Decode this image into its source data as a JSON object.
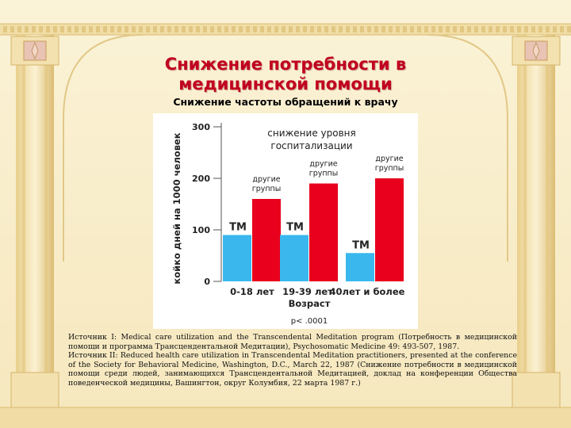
{
  "slide": {
    "title_line1": "Снижение потребности в",
    "title_line2": "медицинской помощи",
    "subtitle": "Снижение частоты обращений к врачу"
  },
  "colors": {
    "tm": "#3ab8ee",
    "other": "#e8001c",
    "title": "#c0001e",
    "background": "#f7ecc8"
  },
  "chart_data": {
    "type": "bar",
    "title": "снижение уровня госпитализации",
    "ylabel": "койко дней на 1000 человек",
    "xlabel": "Возраст",
    "note": "p< .0001",
    "categories": [
      "0-18 лет",
      "19-39 лет",
      "40лет и более"
    ],
    "yticks": [
      "0",
      "100",
      "200",
      "300"
    ],
    "ylim": [
      0,
      300
    ],
    "grid": false,
    "series": [
      {
        "name": "ТМ",
        "color": "#3ab8ee",
        "values": [
          90,
          90,
          55
        ],
        "labels": [
          "ТМ",
          "ТМ",
          "ТМ"
        ]
      },
      {
        "name": "другие группы",
        "color": "#e8001c",
        "values": [
          160,
          190,
          200
        ],
        "labels": [
          [
            "другие",
            "группы"
          ],
          [
            "другие",
            "группы"
          ],
          [
            "другие",
            "группы"
          ]
        ]
      }
    ]
  },
  "sources": {
    "p1": "Источник I: Medical care utilization and the Transcendental Meditation program (Потребность в медицинской помощи и программа Трансцендентальной Медитации), Psychosomatic Medicine 49: 493-507, 1987.",
    "p2": "Источник II: Reduced health care utilization in Transcendental Meditation practitioners, presented at the conference of the Society for Behavioral Medicine, Washington, D.C., March 22, 1987 (Снижение потребности в медицинской помощи среди людей, занимающихся Трансцендентальной Медитацией, доклад на конференции Общества поведенческой медицины, Вашингтон, округ Колумбия, 22 марта 1987 г.)"
  }
}
